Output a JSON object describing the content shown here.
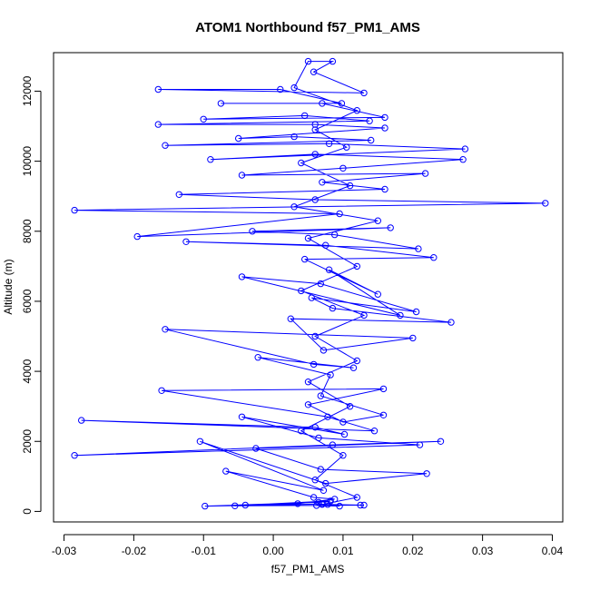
{
  "chart_data": {
    "type": "scatter",
    "title": "ATOM1 Northbound f57_PM1_AMS",
    "xlabel": "f57_PM1_AMS",
    "ylabel": "Altitude (m)",
    "xlim": [
      -0.0315,
      0.0415
    ],
    "ylim": [
      -300,
      13100
    ],
    "x_ticks": [
      -0.03,
      -0.02,
      -0.01,
      0.0,
      0.01,
      0.02,
      0.03,
      0.04
    ],
    "x_tick_labels": [
      "-0.03",
      "-0.02",
      "-0.01",
      "0.00",
      "0.01",
      "0.02",
      "0.03",
      "0.04"
    ],
    "y_ticks": [
      0,
      2000,
      4000,
      6000,
      8000,
      10000,
      12000
    ],
    "y_tick_labels": [
      "0",
      "2000",
      "4000",
      "6000",
      "8000",
      "10000",
      "12000"
    ],
    "series": [
      {
        "name": "f57_PM1_AMS",
        "color": "#0000ff",
        "style": "line+points",
        "points": [
          [
            0.0095,
            150
          ],
          [
            0.0062,
            170
          ],
          [
            0.0078,
            200
          ],
          [
            0.0125,
            180
          ],
          [
            -0.0055,
            160
          ],
          [
            0.007,
            210
          ],
          [
            -0.0098,
            150
          ],
          [
            0.0065,
            260
          ],
          [
            0.0082,
            300
          ],
          [
            -0.004,
            180
          ],
          [
            0.0035,
            220
          ],
          [
            0.0088,
            350
          ],
          [
            0.0058,
            400
          ],
          [
            -0.0068,
            1150
          ],
          [
            0.0072,
            600
          ],
          [
            -0.0105,
            2000
          ],
          [
            0.0075,
            800
          ],
          [
            0.022,
            1080
          ],
          [
            0.0068,
            1200
          ],
          [
            -0.0025,
            1800
          ],
          [
            0.024,
            2000
          ],
          [
            0.0085,
            1900
          ],
          [
            -0.0285,
            1600
          ],
          [
            0.021,
            1900
          ],
          [
            0.0065,
            2100
          ],
          [
            -0.0045,
            2700
          ],
          [
            0.0102,
            2200
          ],
          [
            0.006,
            2400
          ],
          [
            -0.0275,
            2600
          ],
          [
            0.0145,
            2300
          ],
          [
            0.0078,
            2700
          ],
          [
            -0.016,
            3450
          ],
          [
            0.0158,
            3500
          ],
          [
            0.005,
            3050
          ],
          [
            0.01,
            2550
          ],
          [
            0.0158,
            2750
          ],
          [
            0.0068,
            3300
          ],
          [
            0.0082,
            3900
          ],
          [
            -0.0022,
            4400
          ],
          [
            0.0115,
            4100
          ],
          [
            0.0058,
            4200
          ],
          [
            -0.0155,
            5200
          ],
          [
            0.02,
            4950
          ],
          [
            0.0072,
            4600
          ],
          [
            0.0025,
            5500
          ],
          [
            0.0255,
            5400
          ],
          [
            0.0085,
            5800
          ],
          [
            0.0055,
            6100
          ],
          [
            0.0205,
            5700
          ],
          [
            0.0068,
            6500
          ],
          [
            -0.0045,
            6700
          ],
          [
            0.0182,
            5600
          ],
          [
            0.008,
            6900
          ],
          [
            0.015,
            6200
          ],
          [
            0.0045,
            7200
          ],
          [
            0.023,
            7250
          ],
          [
            0.0075,
            7600
          ],
          [
            -0.0125,
            7700
          ],
          [
            0.0208,
            7500
          ],
          [
            0.0088,
            7900
          ],
          [
            -0.003,
            8000
          ],
          [
            0.0168,
            8100
          ],
          [
            -0.0195,
            7850
          ],
          [
            0.0095,
            8500
          ],
          [
            -0.0285,
            8600
          ],
          [
            0.039,
            8800
          ],
          [
            0.006,
            8900
          ],
          [
            -0.0135,
            9050
          ],
          [
            0.016,
            9200
          ],
          [
            0.007,
            9400
          ],
          [
            0.0218,
            9650
          ],
          [
            -0.0045,
            9600
          ],
          [
            0.01,
            9800
          ],
          [
            0.0272,
            10050
          ],
          [
            0.006,
            10200
          ],
          [
            -0.009,
            10050
          ],
          [
            0.0275,
            10350
          ],
          [
            0.008,
            10500
          ],
          [
            -0.0155,
            10450
          ],
          [
            0.014,
            10600
          ],
          [
            0.003,
            10700
          ],
          [
            -0.005,
            10650
          ],
          [
            0.016,
            10950
          ],
          [
            0.006,
            11050
          ],
          [
            -0.0165,
            11050
          ],
          [
            0.0138,
            11150
          ],
          [
            0.0045,
            11300
          ],
          [
            -0.01,
            11200
          ],
          [
            0.016,
            11250
          ],
          [
            0.007,
            11650
          ],
          [
            -0.0075,
            11650
          ],
          [
            0.0098,
            11650
          ],
          [
            0.001,
            12050
          ],
          [
            -0.0165,
            12050
          ],
          [
            0.013,
            11950
          ],
          [
            0.0058,
            12550
          ],
          [
            0.0085,
            12850
          ],
          [
            0.005,
            12850
          ],
          [
            0.003,
            12100
          ],
          [
            0.012,
            11450
          ],
          [
            0.006,
            10900
          ],
          [
            0.0105,
            10400
          ],
          [
            0.004,
            9950
          ],
          [
            0.011,
            9300
          ],
          [
            0.003,
            8700
          ],
          [
            0.015,
            8300
          ],
          [
            0.005,
            7800
          ],
          [
            0.012,
            7000
          ],
          [
            0.004,
            6300
          ],
          [
            0.013,
            5600
          ],
          [
            0.006,
            5000
          ],
          [
            0.012,
            4300
          ],
          [
            0.005,
            3700
          ],
          [
            0.011,
            3000
          ],
          [
            0.004,
            2300
          ],
          [
            0.01,
            1600
          ],
          [
            0.006,
            900
          ],
          [
            0.012,
            400
          ],
          [
            0.007,
            200
          ],
          [
            0.013,
            180
          ]
        ]
      }
    ]
  }
}
